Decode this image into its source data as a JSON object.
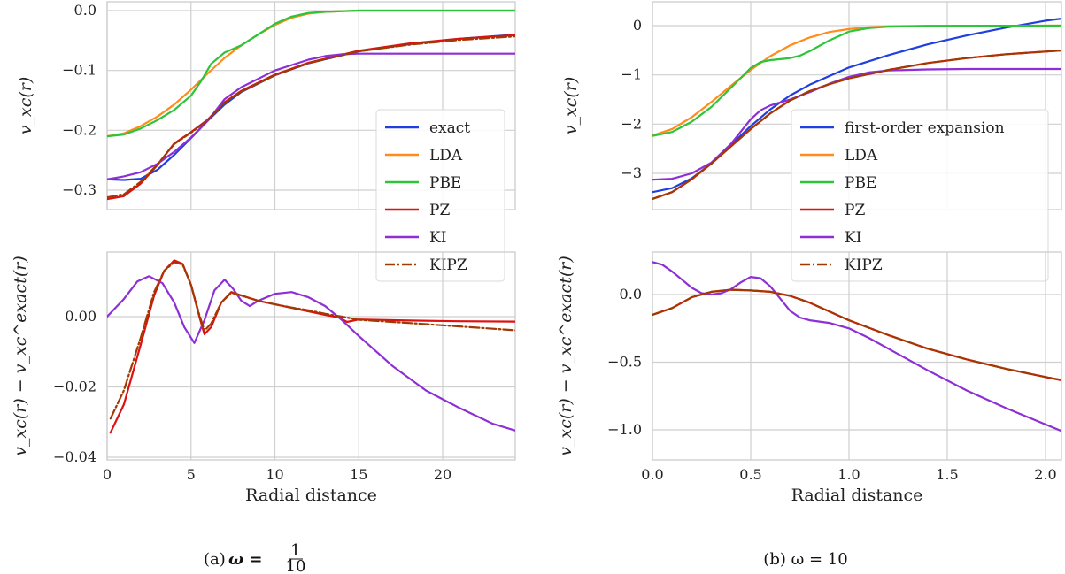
{
  "colors": {
    "exact": "#1f3fe0",
    "LDA": "#ff8c1a",
    "PBE": "#2ec43a",
    "PZ": "#dd1111",
    "KI": "#8e2fd6",
    "KIPZ": "#a03a00",
    "grid": "#cfcfcf",
    "frame": "#cfcfcf"
  },
  "chart_data": [
    {
      "panel": "a-top",
      "type": "line",
      "ylabel": "v_xc(r)",
      "xlim": [
        0,
        24.4
      ],
      "ylim": [
        -0.33,
        0.015
      ],
      "xticks": [
        0,
        5,
        10,
        15,
        20
      ],
      "yticks": [
        0.0,
        -0.1,
        -0.2,
        -0.3
      ],
      "ytick_labels": [
        "0.0",
        "−0.1",
        "−0.2",
        "−0.3"
      ],
      "legend": {
        "placement": "right",
        "entries": [
          "exact",
          "LDA",
          "PBE",
          "PZ",
          "KI",
          "KIPZ"
        ]
      },
      "series": [
        {
          "name": "exact",
          "x": [
            0,
            1,
            2,
            3,
            4,
            5,
            6,
            7,
            8,
            10,
            12,
            15,
            18,
            21,
            24.4
          ],
          "y": [
            -0.282,
            -0.283,
            -0.281,
            -0.266,
            -0.241,
            -0.213,
            -0.184,
            -0.157,
            -0.136,
            -0.108,
            -0.088,
            -0.068,
            -0.056,
            -0.047,
            -0.04
          ]
        },
        {
          "name": "LDA",
          "x": [
            0,
            1,
            2,
            3,
            4,
            5,
            6,
            7,
            8,
            9,
            10,
            11,
            12,
            13,
            14,
            15,
            24.4
          ],
          "y": [
            -0.21,
            -0.205,
            -0.193,
            -0.177,
            -0.157,
            -0.132,
            -0.105,
            -0.079,
            -0.058,
            -0.04,
            -0.024,
            -0.012,
            -0.005,
            -0.002,
            -0.001,
            0,
            0
          ]
        },
        {
          "name": "PBE",
          "x": [
            0,
            1,
            2,
            3,
            4,
            5,
            5.6,
            6.2,
            7,
            8,
            9,
            10,
            11,
            12,
            13,
            14,
            15,
            24.4
          ],
          "y": [
            -0.21,
            -0.207,
            -0.197,
            -0.183,
            -0.166,
            -0.142,
            -0.118,
            -0.089,
            -0.07,
            -0.058,
            -0.04,
            -0.022,
            -0.01,
            -0.004,
            -0.002,
            -0.001,
            0,
            0
          ]
        },
        {
          "name": "PZ",
          "x": [
            0,
            1,
            2,
            3,
            4,
            5,
            6,
            7,
            8,
            10,
            12,
            15,
            18,
            21,
            24.4
          ],
          "y": [
            -0.315,
            -0.31,
            -0.289,
            -0.258,
            -0.222,
            -0.203,
            -0.182,
            -0.153,
            -0.134,
            -0.107,
            -0.087,
            -0.067,
            -0.055,
            -0.047,
            -0.041
          ]
        },
        {
          "name": "KI",
          "x": [
            0,
            1,
            2,
            3,
            4,
            5,
            6,
            7,
            8,
            10,
            12,
            13,
            14,
            15,
            18,
            21,
            24.4
          ],
          "y": [
            -0.282,
            -0.277,
            -0.27,
            -0.256,
            -0.236,
            -0.212,
            -0.184,
            -0.148,
            -0.128,
            -0.1,
            -0.082,
            -0.076,
            -0.073,
            -0.072,
            -0.072,
            -0.072,
            -0.072
          ]
        },
        {
          "name": "KIPZ",
          "x": [
            0,
            1,
            2,
            3,
            4,
            5,
            6,
            7,
            8,
            10,
            12,
            15,
            18,
            21,
            24.4
          ],
          "y": [
            -0.312,
            -0.307,
            -0.286,
            -0.257,
            -0.223,
            -0.204,
            -0.183,
            -0.154,
            -0.135,
            -0.108,
            -0.088,
            -0.068,
            -0.057,
            -0.049,
            -0.043
          ]
        }
      ]
    },
    {
      "panel": "a-bottom",
      "type": "line",
      "xlabel": "Radial distance",
      "ylabel": "v_xc(r) − v_xc^exact(r)",
      "xlim": [
        0,
        24.4
      ],
      "ylim": [
        -0.0415,
        0.0175
      ],
      "xticks": [
        0,
        5,
        10,
        15,
        20
      ],
      "yticks": [
        0.0,
        -0.02,
        -0.04
      ],
      "ytick_labels": [
        "0.00",
        "−0.02",
        "−0.04"
      ],
      "series": [
        {
          "name": "PZ",
          "x": [
            0.2,
            1,
            2,
            2.8,
            3.4,
            4,
            4.5,
            5,
            5.5,
            5.8,
            6.2,
            6.8,
            7.4,
            8,
            9,
            10,
            11,
            12,
            13,
            13.8,
            14.3,
            15,
            18,
            21,
            24.4
          ],
          "y": [
            -0.033,
            -0.025,
            -0.008,
            0.006,
            0.013,
            0.016,
            0.015,
            0.009,
            0.0,
            -0.005,
            -0.003,
            0.004,
            0.007,
            0.006,
            0.0045,
            0.0035,
            0.0025,
            0.0015,
            0.0005,
            -0.0002,
            -0.0015,
            -0.0008,
            -0.0011,
            -0.0013,
            -0.0014
          ]
        },
        {
          "name": "KI",
          "x": [
            0,
            1,
            1.8,
            2.5,
            3.3,
            4,
            4.6,
            5.2,
            5.8,
            6.4,
            7,
            7.5,
            8,
            8.5,
            9,
            10,
            11,
            12,
            13,
            14,
            15,
            17,
            19,
            21,
            23,
            24.4
          ],
          "y": [
            0.0,
            0.005,
            0.01,
            0.0115,
            0.0095,
            0.004,
            -0.003,
            -0.0075,
            -0.001,
            0.0075,
            0.0105,
            0.008,
            0.0045,
            0.003,
            0.0045,
            0.0065,
            0.007,
            0.0055,
            0.003,
            -0.001,
            -0.0055,
            -0.014,
            -0.021,
            -0.026,
            -0.0305,
            -0.0325
          ]
        },
        {
          "name": "KIPZ",
          "x": [
            0.2,
            1,
            2,
            2.8,
            3.4,
            4,
            4.5,
            5,
            5.5,
            5.8,
            6.2,
            6.8,
            7.4,
            8,
            9,
            10,
            11,
            12,
            13,
            14,
            15,
            18,
            21,
            24.4
          ],
          "y": [
            -0.029,
            -0.021,
            -0.006,
            0.007,
            0.013,
            0.0155,
            0.0148,
            0.009,
            0.0005,
            -0.004,
            -0.002,
            0.004,
            0.0068,
            0.006,
            0.0045,
            0.0035,
            0.0026,
            0.0018,
            0.0008,
            0.0,
            -0.0009,
            -0.0018,
            -0.0028,
            -0.0039
          ]
        }
      ]
    },
    {
      "panel": "b-top",
      "type": "line",
      "ylabel": "v_xc(r)",
      "xlim": [
        0,
        2.1
      ],
      "ylim": [
        -3.65,
        0.35
      ],
      "xticks": [
        0.0,
        0.5,
        1.0,
        1.5,
        2.0
      ],
      "yticks": [
        0,
        -1,
        -2,
        -3
      ],
      "ytick_labels": [
        "0",
        "−1",
        "−2",
        "−3"
      ],
      "legend": {
        "placement": "right",
        "entries": [
          "first-order expansion",
          "LDA",
          "PBE",
          "PZ",
          "KI",
          "KIPZ"
        ]
      },
      "series": [
        {
          "name": "first-order expansion",
          "x": [
            0,
            0.1,
            0.2,
            0.3,
            0.4,
            0.5,
            0.6,
            0.7,
            0.8,
            1.0,
            1.2,
            1.4,
            1.6,
            1.8,
            2.0,
            2.1
          ],
          "y": [
            -3.38,
            -3.3,
            -3.1,
            -2.8,
            -2.42,
            -2.04,
            -1.7,
            -1.42,
            -1.2,
            -0.85,
            -0.6,
            -0.38,
            -0.2,
            -0.04,
            0.1,
            0.15
          ]
        },
        {
          "name": "LDA",
          "x": [
            0,
            0.1,
            0.2,
            0.3,
            0.4,
            0.5,
            0.6,
            0.7,
            0.8,
            0.9,
            1.0,
            1.1,
            1.2,
            1.4,
            1.6,
            2.1
          ],
          "y": [
            -2.23,
            -2.1,
            -1.86,
            -1.55,
            -1.22,
            -0.9,
            -0.62,
            -0.4,
            -0.24,
            -0.13,
            -0.07,
            -0.035,
            -0.015,
            -0.004,
            -0.001,
            0
          ]
        },
        {
          "name": "PBE",
          "x": [
            0,
            0.1,
            0.2,
            0.3,
            0.4,
            0.5,
            0.55,
            0.6,
            0.65,
            0.7,
            0.75,
            0.8,
            0.9,
            1.0,
            1.1,
            1.2,
            1.4,
            2.1
          ],
          "y": [
            -2.24,
            -2.16,
            -1.95,
            -1.65,
            -1.26,
            -0.86,
            -0.74,
            -0.7,
            -0.68,
            -0.66,
            -0.61,
            -0.52,
            -0.3,
            -0.12,
            -0.05,
            -0.02,
            -0.005,
            0
          ]
        },
        {
          "name": "PZ",
          "x": [
            0,
            0.1,
            0.2,
            0.3,
            0.4,
            0.5,
            0.6,
            0.7,
            0.8,
            0.9,
            1.0,
            1.2,
            1.4,
            1.6,
            1.8,
            2.1
          ],
          "y": [
            -3.52,
            -3.38,
            -3.12,
            -2.8,
            -2.45,
            -2.1,
            -1.78,
            -1.52,
            -1.33,
            -1.19,
            -1.07,
            -0.9,
            -0.76,
            -0.66,
            -0.58,
            -0.5
          ]
        },
        {
          "name": "KI",
          "x": [
            0,
            0.1,
            0.2,
            0.3,
            0.4,
            0.5,
            0.55,
            0.6,
            0.65,
            0.7,
            0.8,
            0.9,
            1.0,
            1.1,
            1.2,
            1.4,
            1.6,
            2.1
          ],
          "y": [
            -3.13,
            -3.11,
            -3.0,
            -2.78,
            -2.4,
            -1.9,
            -1.72,
            -1.62,
            -1.56,
            -1.5,
            -1.35,
            -1.18,
            -1.04,
            -0.95,
            -0.91,
            -0.89,
            -0.88,
            -0.88
          ]
        },
        {
          "name": "KIPZ",
          "x": [
            0,
            0.1,
            0.2,
            0.3,
            0.4,
            0.5,
            0.6,
            0.7,
            0.8,
            0.9,
            1.0,
            1.2,
            1.4,
            1.6,
            1.8,
            2.1
          ],
          "y": [
            -3.52,
            -3.38,
            -3.12,
            -2.8,
            -2.45,
            -2.1,
            -1.78,
            -1.52,
            -1.33,
            -1.19,
            -1.07,
            -0.9,
            -0.76,
            -0.66,
            -0.58,
            -0.5
          ]
        }
      ]
    },
    {
      "panel": "b-bottom",
      "type": "line",
      "xlabel": "Radial distance",
      "ylabel": "v_xc(r) − v_xc^exact(r)",
      "xlim": [
        0,
        2.1
      ],
      "ylim": [
        -1.25,
        0.33
      ],
      "xticks": [
        0.0,
        0.5,
        1.0,
        1.5,
        2.0
      ],
      "yticks": [
        0.0,
        -0.5,
        -1.0
      ],
      "ytick_labels": [
        "0.0",
        "−0.5",
        "−1.0"
      ],
      "series": [
        {
          "name": "PZ",
          "x": [
            0,
            0.1,
            0.2,
            0.3,
            0.4,
            0.5,
            0.6,
            0.7,
            0.8,
            1.0,
            1.2,
            1.4,
            1.6,
            1.8,
            2.0,
            2.1
          ],
          "y": [
            -0.15,
            -0.1,
            -0.02,
            0.02,
            0.035,
            0.03,
            0.02,
            -0.01,
            -0.06,
            -0.19,
            -0.3,
            -0.4,
            -0.48,
            -0.55,
            -0.61,
            -0.64
          ]
        },
        {
          "name": "KI",
          "x": [
            0,
            0.05,
            0.1,
            0.15,
            0.2,
            0.25,
            0.3,
            0.35,
            0.4,
            0.45,
            0.5,
            0.55,
            0.6,
            0.65,
            0.7,
            0.75,
            0.8,
            0.9,
            1.0,
            1.1,
            1.2,
            1.4,
            1.6,
            1.8,
            2.0,
            2.1
          ],
          "y": [
            0.24,
            0.22,
            0.17,
            0.11,
            0.05,
            0.01,
            0.0,
            0.01,
            0.04,
            0.09,
            0.13,
            0.12,
            0.06,
            -0.03,
            -0.12,
            -0.17,
            -0.19,
            -0.21,
            -0.25,
            -0.32,
            -0.4,
            -0.56,
            -0.71,
            -0.84,
            -0.96,
            -1.02
          ]
        },
        {
          "name": "KIPZ",
          "x": [
            0,
            0.1,
            0.2,
            0.3,
            0.4,
            0.5,
            0.6,
            0.7,
            0.8,
            1.0,
            1.2,
            1.4,
            1.6,
            1.8,
            2.0,
            2.1
          ],
          "y": [
            -0.15,
            -0.1,
            -0.02,
            0.02,
            0.035,
            0.03,
            0.02,
            -0.01,
            -0.06,
            -0.19,
            -0.3,
            -0.4,
            -0.48,
            -0.55,
            -0.61,
            -0.635
          ]
        }
      ]
    }
  ],
  "captions": {
    "a_prefix": "(a)",
    "a_omega": "ω =",
    "a_num": "1",
    "a_den": "10",
    "b_text": "(b) ω = 10"
  }
}
